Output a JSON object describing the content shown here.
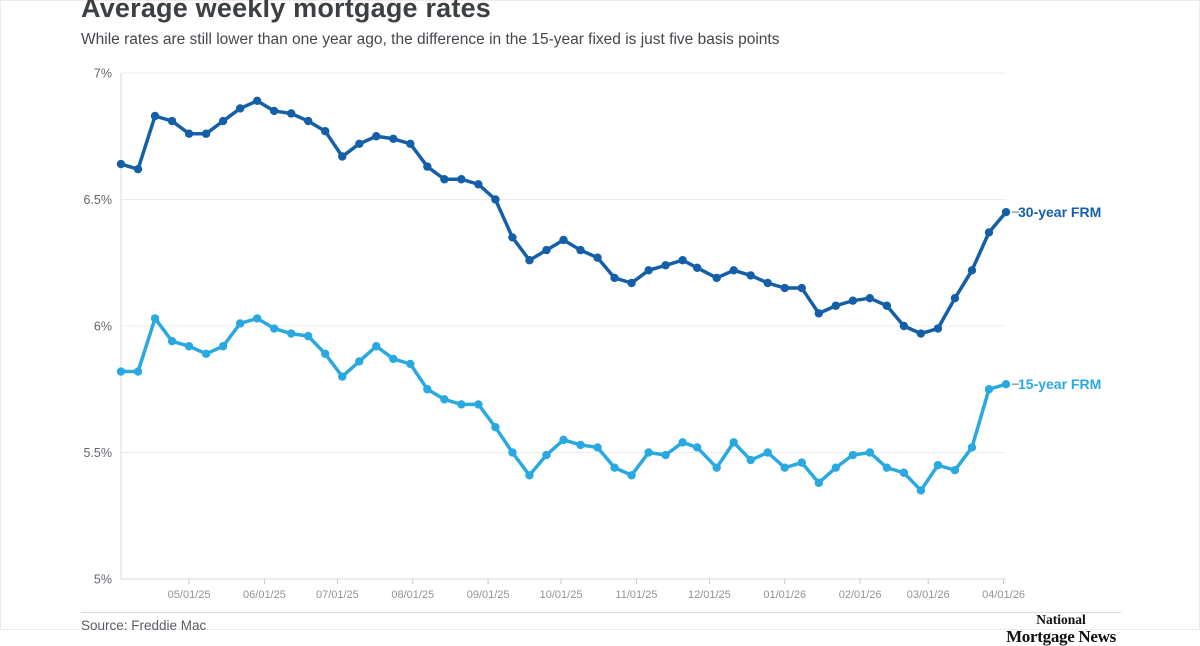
{
  "header": {
    "title": "Average weekly mortgage rates",
    "subtitle": "While rates are still lower than one year ago, the difference in the 15-year fixed is just five basis points"
  },
  "footer": {
    "source": "Source: Freddie Mac",
    "logo_line1": "National",
    "logo_line2": "Mortgage News"
  },
  "colors": {
    "series_30yr": "#155fa8",
    "series_15yr": "#2aa8e0",
    "grid": "#ececec",
    "axis_line": "#d8d8d8",
    "tick_mark": "#c8c8c8",
    "x_tick_label": "#8f9499",
    "y_tick_label": "#63676c",
    "legend_dash": "#9aa0a5",
    "background": "#ffffff"
  },
  "chart_data": {
    "type": "line",
    "title": "Average weekly mortgage rates",
    "xlabel": "",
    "ylabel": "",
    "ylim": [
      5,
      7
    ],
    "grid": "horizontal",
    "legend_position": "right-of-line-end",
    "yticks": [
      "5%",
      "5.5%",
      "6%",
      "6.5%",
      "7%"
    ],
    "xticks": [
      "05/01/25",
      "06/01/25",
      "07/01/25",
      "08/01/25",
      "09/01/25",
      "10/01/25",
      "11/01/25",
      "12/01/25",
      "01/01/26",
      "02/01/26",
      "03/01/26",
      "04/01/26"
    ],
    "x": [
      "04/03/25",
      "04/10/25",
      "04/17/25",
      "04/24/25",
      "05/01/25",
      "05/08/25",
      "05/15/25",
      "05/22/25",
      "05/29/25",
      "06/05/25",
      "06/12/25",
      "06/19/25",
      "06/26/25",
      "07/03/25",
      "07/10/25",
      "07/17/25",
      "07/24/25",
      "07/31/25",
      "08/07/25",
      "08/14/25",
      "08/21/25",
      "08/28/25",
      "09/04/25",
      "09/11/25",
      "09/18/25",
      "09/25/25",
      "10/02/25",
      "10/09/25",
      "10/16/25",
      "10/23/25",
      "10/30/25",
      "11/06/25",
      "11/13/25",
      "11/20/25",
      "11/26/25",
      "12/04/25",
      "12/11/25",
      "12/18/25",
      "12/25/25",
      "01/01/26",
      "01/08/26",
      "01/15/26",
      "01/22/26",
      "01/29/26",
      "02/05/26",
      "02/12/26",
      "02/19/26",
      "02/26/26",
      "03/05/26",
      "03/12/26",
      "03/19/26",
      "03/26/26",
      "04/02/26"
    ],
    "series": [
      {
        "name": "30-year FRM",
        "color": "#155fa8",
        "values": [
          6.64,
          6.62,
          6.83,
          6.81,
          6.76,
          6.76,
          6.81,
          6.86,
          6.89,
          6.85,
          6.84,
          6.81,
          6.77,
          6.67,
          6.72,
          6.75,
          6.74,
          6.72,
          6.63,
          6.58,
          6.58,
          6.56,
          6.5,
          6.35,
          6.26,
          6.3,
          6.34,
          6.3,
          6.27,
          6.19,
          6.17,
          6.22,
          6.24,
          6.26,
          6.23,
          6.19,
          6.22,
          6.2,
          6.17,
          6.15,
          6.15,
          6.05,
          6.08,
          6.1,
          6.11,
          6.08,
          6.0,
          5.97,
          5.99,
          6.11,
          6.22,
          6.37,
          6.45
        ]
      },
      {
        "name": "15-year FRM",
        "color": "#2aa8e0",
        "values": [
          5.82,
          5.82,
          6.03,
          5.94,
          5.92,
          5.89,
          5.92,
          6.01,
          6.03,
          5.99,
          5.97,
          5.96,
          5.89,
          5.8,
          5.86,
          5.92,
          5.87,
          5.85,
          5.75,
          5.71,
          5.69,
          5.69,
          5.6,
          5.5,
          5.41,
          5.49,
          5.55,
          5.53,
          5.52,
          5.44,
          5.41,
          5.5,
          5.49,
          5.54,
          5.52,
          5.44,
          5.54,
          5.47,
          5.5,
          5.44,
          5.46,
          5.38,
          5.44,
          5.49,
          5.5,
          5.44,
          5.42,
          5.35,
          5.45,
          5.43,
          5.52,
          5.75,
          5.77
        ]
      }
    ]
  }
}
